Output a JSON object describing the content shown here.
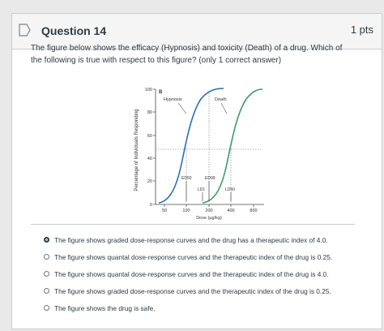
{
  "question": {
    "title": "Question 14",
    "points": "1 pts",
    "text": "The figure below shows the efficacy (Hypnosis) and toxicity (Death) of a drug.  Which of the following is true with respect to this figure? (only 1 correct answer)"
  },
  "figure": {
    "panel_label": "B",
    "ylabel": "Percentage of Individuals Responding",
    "xlabel": "Dose (µg/kg)",
    "y_ticks": [
      "100",
      "80",
      "60",
      "40",
      "20",
      "0"
    ],
    "x_ticks": [
      "50",
      "100",
      "200",
      "400",
      "800"
    ],
    "curve_labels": {
      "hypnosis": "Hypnosis",
      "death": "Death"
    },
    "markers": {
      "ed50": "ED50",
      "ed99": "ED99",
      "ld1": "LD1",
      "ld50": "LD50"
    }
  },
  "answers": [
    {
      "label": "The figure shows graded dose-response curves and the drug has a therapeutic index of 4.0.",
      "selected": true
    },
    {
      "label": "The figure shows quantal dose-response curves and the therapeutic index of the drug is 0.25.",
      "selected": false
    },
    {
      "label": "The figure shows quantal dose-response curves and the therapeutic index of the drug is 4.0.",
      "selected": false
    },
    {
      "label": "The figure shows graded dose-response curves and the therapeutic index of the drug is 0.25.",
      "selected": false
    },
    {
      "label": "The figure shows the drug is safe.",
      "selected": false
    }
  ],
  "colors": {
    "curve_hypnosis": "#2e6fb0",
    "curve_death": "#3f9a6e",
    "selected_radio": "#2d3b45"
  }
}
